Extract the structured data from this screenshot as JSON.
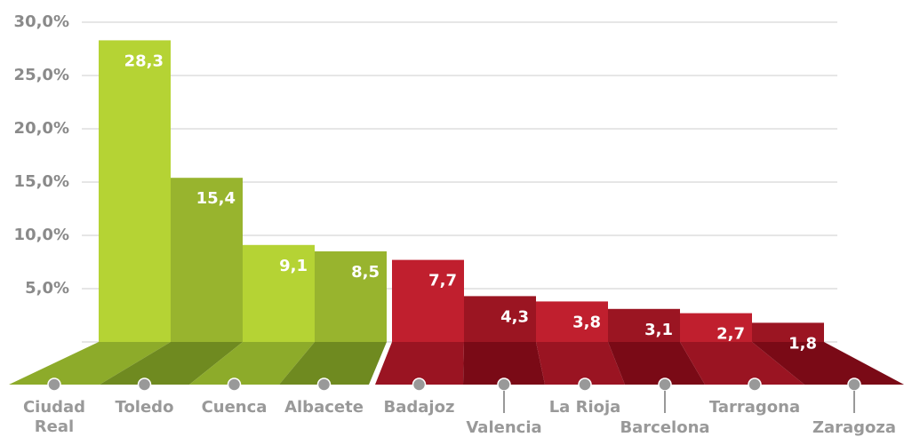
{
  "chart_data": {
    "type": "bar",
    "categories": [
      "Ciudad Real",
      "Toledo",
      "Cuenca",
      "Albacete",
      "Badajoz",
      "Valencia",
      "La Rioja",
      "Barcelona",
      "Tarragona",
      "Zaragoza"
    ],
    "values": [
      28.3,
      15.4,
      9.1,
      8.5,
      7.7,
      4.3,
      3.8,
      3.1,
      2.7,
      1.8
    ],
    "value_labels": [
      "28,3",
      "15,4",
      "9,1",
      "8,5",
      "7,7",
      "4,3",
      "3,8",
      "3,1",
      "2,7",
      "1,8"
    ],
    "colors": [
      "#b5d334",
      "#98b42e",
      "#b5d334",
      "#98b42e",
      "#c01f2e",
      "#9b1522",
      "#c01f2e",
      "#9b1522",
      "#c01f2e",
      "#9b1522"
    ],
    "ylim": [
      0,
      30
    ],
    "yticks": [
      {
        "value": 5,
        "label": "5,0%"
      },
      {
        "value": 10,
        "label": "10,0%"
      },
      {
        "value": 15,
        "label": "15,0%"
      },
      {
        "value": 20,
        "label": "20,0%"
      },
      {
        "value": 25,
        "label": "25,0%"
      },
      {
        "value": 30,
        "label": "30,0%"
      }
    ],
    "grid": true
  }
}
